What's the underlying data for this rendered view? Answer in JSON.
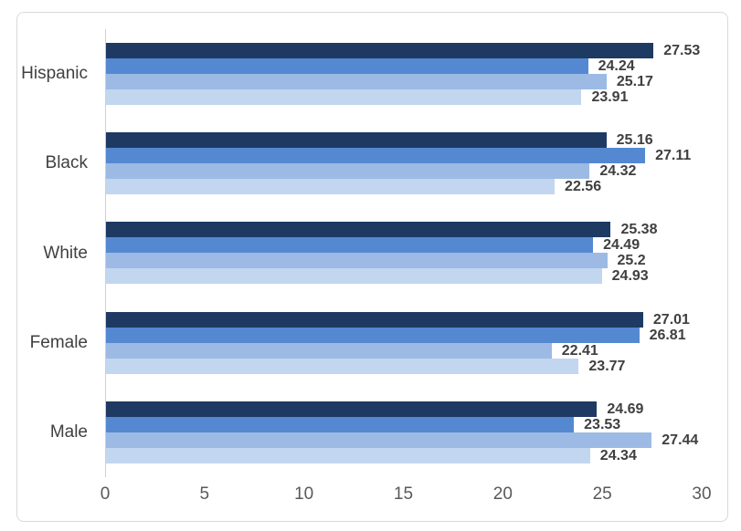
{
  "chart_data": {
    "type": "bar",
    "orientation": "horizontal",
    "title": "",
    "xlabel": "",
    "ylabel": "",
    "categories": [
      "Hispanic",
      "Black",
      "White",
      "Female",
      "Male"
    ],
    "series": [
      {
        "name": "series-1",
        "color": "#1E3A63",
        "values": [
          27.53,
          25.16,
          25.38,
          27.01,
          24.69
        ]
      },
      {
        "name": "series-2",
        "color": "#5489D2",
        "values": [
          24.24,
          27.11,
          24.49,
          26.81,
          23.53
        ]
      },
      {
        "name": "series-3",
        "color": "#9CBAE4",
        "values": [
          25.17,
          24.32,
          25.2,
          22.41,
          27.44
        ]
      },
      {
        "name": "series-4",
        "color": "#C2D6EF",
        "values": [
          23.91,
          22.56,
          24.93,
          23.77,
          24.34
        ]
      }
    ],
    "x_axis": {
      "min": 0,
      "max": 30,
      "ticks": [
        0,
        5,
        10,
        15,
        20,
        25,
        30
      ]
    },
    "grid": false,
    "legend": false,
    "data_labels": true,
    "colors": {
      "data_label_text": "#3F3F3F",
      "category_text": "#404040",
      "axis_tick_text": "#595959",
      "axis_line": "#D0D0D0",
      "chart_border": "#D9D9D9",
      "background": "#FFFFFF"
    }
  }
}
